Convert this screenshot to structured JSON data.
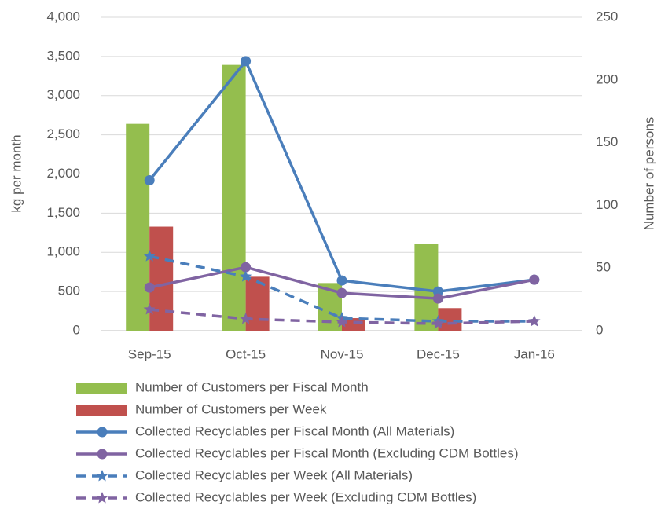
{
  "chart_data": {
    "type": "combo",
    "categories": [
      "Sep-15",
      "Oct-15",
      "Nov-15",
      "Dec-15",
      "Jan-16"
    ],
    "ylabel": "kg per month",
    "y2label": "Number of persons",
    "ylim": [
      0,
      4000
    ],
    "yticks": [
      0,
      500,
      {
        "value": 1000,
        "label": "1,000"
      },
      {
        "value": 1500,
        "label": "1,500"
      },
      {
        "value": 2000,
        "label": "2,000"
      },
      {
        "value": 2500,
        "label": "2,500"
      },
      {
        "value": 3000,
        "label": "3,000"
      },
      {
        "value": 3500,
        "label": "3,500"
      },
      {
        "value": 4000,
        "label": "4,000"
      }
    ],
    "y2lim": [
      0,
      250
    ],
    "y2ticks": [
      0,
      50,
      100,
      150,
      200,
      250
    ],
    "grid": true,
    "legend": "bottom",
    "series": [
      {
        "name": "Number of Customers per Fiscal Month",
        "type": "bar",
        "axis": "y2",
        "color": "#94be4e",
        "values": [
          165,
          212,
          38,
          69,
          null
        ]
      },
      {
        "name": "Number of Customers per Week",
        "type": "bar",
        "axis": "y2",
        "color": "#c0504d",
        "values": [
          83,
          43,
          10,
          18,
          null
        ]
      },
      {
        "name": "Collected Recyclables per Fiscal Month (All Materials)",
        "type": "line",
        "color": "#4a7ebb",
        "marker": "circle",
        "dashed": false,
        "values": [
          1920,
          3440,
          640,
          500,
          650
        ]
      },
      {
        "name": "Collected Recyclables per Fiscal Month (Excluding CDM Bottles)",
        "type": "line",
        "color": "#8064a2",
        "marker": "circle",
        "dashed": false,
        "values": [
          550,
          810,
          480,
          410,
          650
        ]
      },
      {
        "name": "Collected Recyclables per Week (All Materials)",
        "type": "line",
        "color": "#4a7ebb",
        "marker": "star",
        "dashed": true,
        "values": [
          950,
          690,
          160,
          120,
          120
        ]
      },
      {
        "name": "Collected Recyclables per Week (Excluding CDM Bottles)",
        "type": "line",
        "color": "#8064a2",
        "marker": "star",
        "dashed": true,
        "values": [
          270,
          150,
          110,
          90,
          120
        ]
      }
    ]
  }
}
